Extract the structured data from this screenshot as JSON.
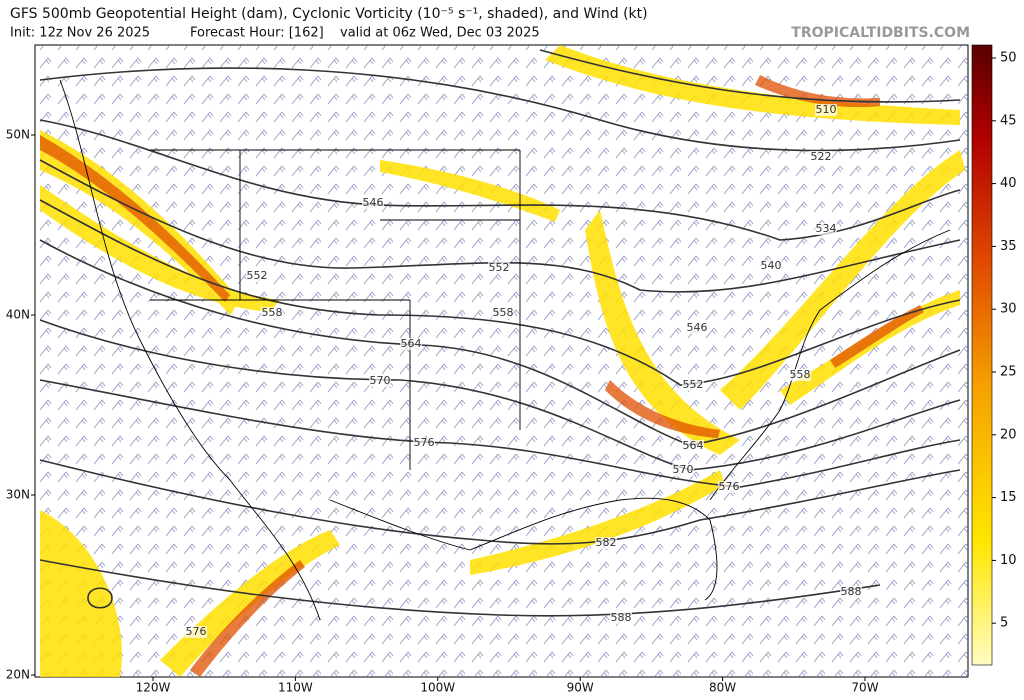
{
  "header": {
    "title": "GFS 500mb Geopotential Height (dam), Cyclonic Vorticity (10⁻⁵ s⁻¹, shaded), and Wind (kt)",
    "init": "Init: 12z Nov 26 2025",
    "forecast_hour": "Forecast Hour: [162]",
    "valid": "valid at 06z Wed, Dec 03 2025",
    "watermark": "TROPICALTIDBITS.COM"
  },
  "map": {
    "lat_labels": [
      "50N",
      "40N",
      "30N",
      "20N"
    ],
    "lon_labels": [
      "120W",
      "110W",
      "100W",
      "90W",
      "80W",
      "70W"
    ],
    "contour_labels": [
      "510",
      "522",
      "534",
      "540",
      "546",
      "546",
      "552",
      "552",
      "552",
      "558",
      "558",
      "558",
      "564",
      "564",
      "570",
      "570",
      "576",
      "576",
      "576",
      "582",
      "588",
      "588"
    ]
  },
  "colorbar": {
    "ticks": [
      5,
      10,
      15,
      20,
      25,
      30,
      35,
      40,
      45,
      50
    ]
  }
}
